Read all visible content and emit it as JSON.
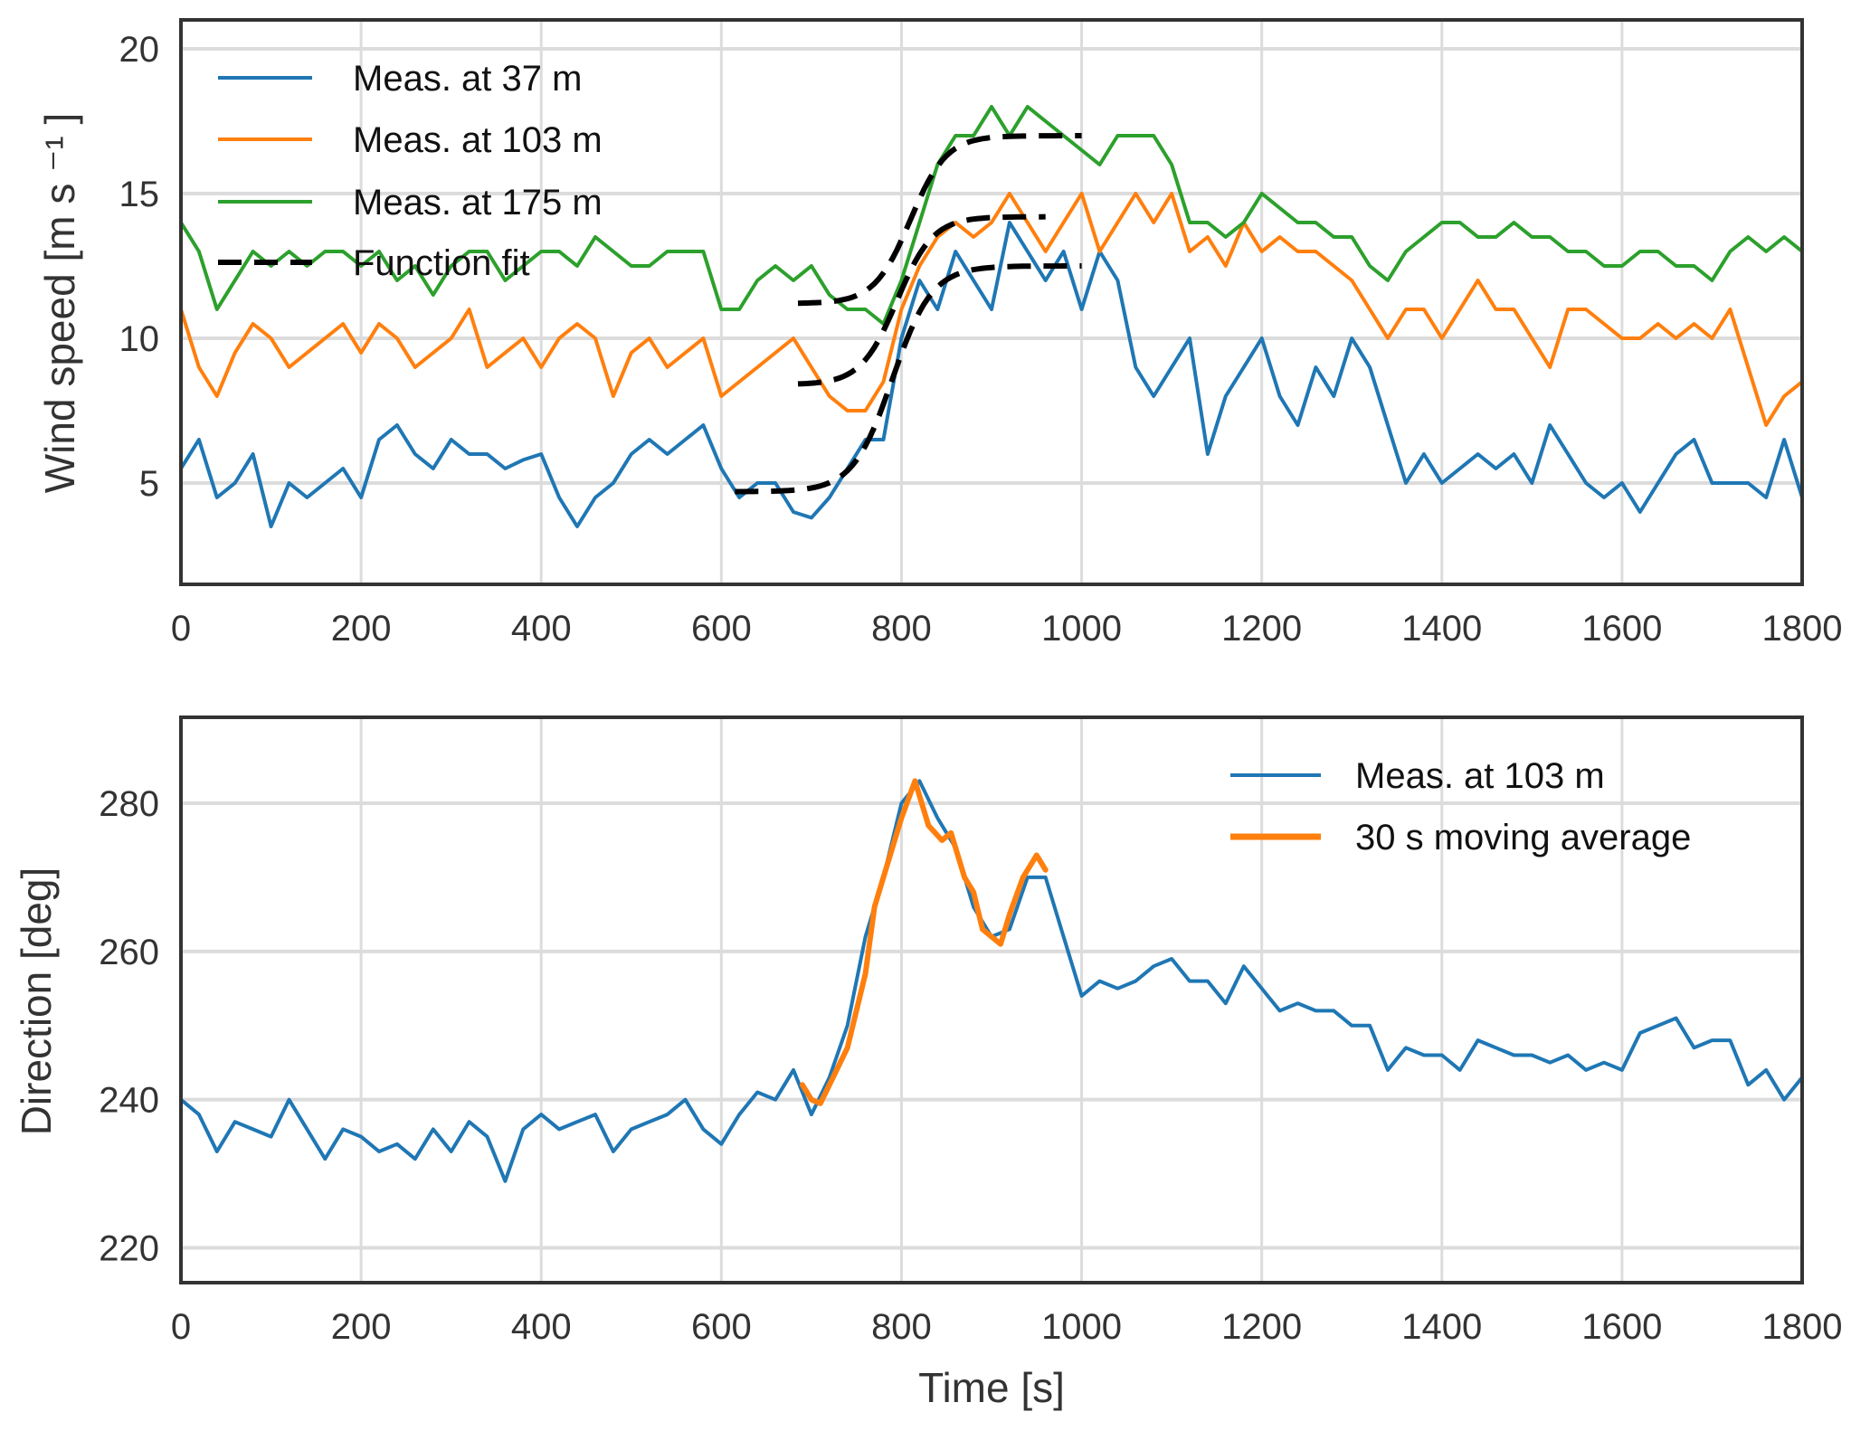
{
  "chart_data": [
    {
      "type": "line",
      "title": "",
      "xlabel": "",
      "ylabel": "Wind speed [m s ⁻¹ ]",
      "xlim": [
        0,
        1800
      ],
      "ylim": [
        1.5,
        21
      ],
      "xticks": [
        "0",
        "200",
        "400",
        "600",
        "800",
        "1000",
        "1200",
        "1400",
        "1600",
        "1800"
      ],
      "yticks": [
        "5",
        "10",
        "15",
        "20"
      ],
      "grid": true,
      "legend_position": "top-left",
      "x": [
        0,
        20,
        40,
        60,
        80,
        100,
        120,
        140,
        160,
        180,
        200,
        220,
        240,
        260,
        280,
        300,
        320,
        340,
        360,
        380,
        400,
        420,
        440,
        460,
        480,
        500,
        520,
        540,
        560,
        580,
        600,
        620,
        640,
        660,
        680,
        700,
        720,
        740,
        760,
        780,
        800,
        820,
        840,
        860,
        880,
        900,
        920,
        940,
        960,
        980,
        1000,
        1020,
        1040,
        1060,
        1080,
        1100,
        1120,
        1140,
        1160,
        1180,
        1200,
        1220,
        1240,
        1260,
        1280,
        1300,
        1320,
        1340,
        1360,
        1380,
        1400,
        1420,
        1440,
        1460,
        1480,
        1500,
        1520,
        1540,
        1560,
        1580,
        1600,
        1620,
        1640,
        1660,
        1680,
        1700,
        1720,
        1740,
        1760,
        1780,
        1800
      ],
      "series": [
        {
          "name": "Meas. at 37 m",
          "color": "#1f77b4",
          "values": [
            5.5,
            6.5,
            4.5,
            5,
            6,
            3.5,
            5,
            4.5,
            5,
            5.5,
            4.5,
            6.5,
            7,
            6,
            5.5,
            6.5,
            6,
            6,
            5.5,
            5.8,
            6,
            4.5,
            3.5,
            4.5,
            5,
            6,
            6.5,
            6,
            6.5,
            7,
            5.5,
            4.5,
            5,
            5,
            4,
            3.8,
            4.5,
            5.5,
            6.5,
            6.5,
            10,
            12,
            11,
            13,
            12,
            11,
            14,
            13,
            12,
            13,
            11,
            13,
            12,
            9,
            8,
            9,
            10,
            6,
            8,
            9,
            10,
            8,
            7,
            9,
            8,
            10,
            9,
            7,
            5,
            6,
            5,
            5.5,
            6,
            5.5,
            6,
            5,
            7,
            6,
            5,
            4.5,
            5,
            4,
            5,
            6,
            6.5,
            5,
            5,
            5,
            4.5,
            6.5,
            4.5
          ]
        },
        {
          "name": "Meas. at 103 m",
          "color": "#ff7f0e",
          "values": [
            11,
            9,
            8,
            9.5,
            10.5,
            10,
            9,
            9.5,
            10,
            10.5,
            9.5,
            10.5,
            10,
            9,
            9.5,
            10,
            11,
            9,
            9.5,
            10,
            9,
            10,
            10.5,
            10,
            8,
            9.5,
            10,
            9,
            9.5,
            10,
            8,
            8.5,
            9,
            9.5,
            10,
            9,
            8,
            7.5,
            7.5,
            8.5,
            11,
            12.5,
            13.5,
            14,
            13.5,
            14,
            15,
            14,
            13,
            14,
            15,
            13,
            14,
            15,
            14,
            15,
            13,
            13.5,
            12.5,
            14,
            13,
            13.5,
            13,
            13,
            12.5,
            12,
            11,
            10,
            11,
            11,
            10,
            11,
            12,
            11,
            11,
            10,
            9,
            11,
            11,
            10.5,
            10,
            10,
            10.5,
            10,
            10.5,
            10,
            11,
            9,
            7,
            8,
            8.5
          ]
        },
        {
          "name": "Meas. at  175 m",
          "color": "#2ca02c",
          "values": [
            14,
            13,
            11,
            12,
            13,
            12.5,
            13,
            12.5,
            13,
            13,
            12.5,
            13,
            12,
            12.5,
            11.5,
            12.5,
            13,
            13,
            12,
            12.5,
            13,
            13,
            12.5,
            13.5,
            13,
            12.5,
            12.5,
            13,
            13,
            13,
            11,
            11,
            12,
            12.5,
            12,
            12.5,
            11.5,
            11,
            11,
            10.5,
            12,
            14,
            16,
            17,
            17,
            18,
            17,
            18,
            17.5,
            17,
            16.5,
            16,
            17,
            17,
            17,
            16,
            14,
            14,
            13.5,
            14,
            15,
            14.5,
            14,
            14,
            13.5,
            13.5,
            12.5,
            12,
            13,
            13.5,
            14,
            14,
            13.5,
            13.5,
            14,
            13.5,
            13.5,
            13,
            13,
            12.5,
            12.5,
            13,
            13,
            12.5,
            12.5,
            12,
            13,
            13.5,
            13,
            13.5,
            13
          ]
        }
      ],
      "function_fit": {
        "name": "Function fit",
        "color": "#000000",
        "curves": [
          {
            "t_start": 615,
            "t_end": 1000,
            "low": 4.7,
            "high": 12.5,
            "t0": 790,
            "tau": 22
          },
          {
            "t_start": 685,
            "t_end": 960,
            "low": 8.4,
            "high": 14.2,
            "t0": 795,
            "tau": 20
          },
          {
            "t_start": 685,
            "t_end": 1000,
            "low": 11.2,
            "high": 17.0,
            "t0": 810,
            "tau": 20
          }
        ]
      }
    },
    {
      "type": "line",
      "title": "",
      "xlabel": "Time [s]",
      "ylabel": "Direction [deg]",
      "xlim": [
        0,
        1800
      ],
      "ylim": [
        215.3,
        291.6
      ],
      "xticks": [
        "0",
        "200",
        "400",
        "600",
        "800",
        "1000",
        "1200",
        "1400",
        "1600",
        "1800"
      ],
      "yticks": [
        "220",
        "240",
        "260",
        "280"
      ],
      "grid": true,
      "legend_position": "top-right",
      "series": [
        {
          "name": "Meas. at 103 m",
          "color": "#1f77b4",
          "x": [
            0,
            20,
            40,
            60,
            80,
            100,
            120,
            140,
            160,
            180,
            200,
            220,
            240,
            260,
            280,
            300,
            320,
            340,
            360,
            380,
            400,
            420,
            440,
            460,
            480,
            500,
            520,
            540,
            560,
            580,
            600,
            620,
            640,
            660,
            680,
            700,
            720,
            740,
            760,
            780,
            800,
            820,
            840,
            860,
            880,
            900,
            920,
            940,
            960,
            980,
            1000,
            1020,
            1040,
            1060,
            1080,
            1100,
            1120,
            1140,
            1160,
            1180,
            1200,
            1220,
            1240,
            1260,
            1280,
            1300,
            1320,
            1340,
            1360,
            1380,
            1400,
            1420,
            1440,
            1460,
            1480,
            1500,
            1520,
            1540,
            1560,
            1580,
            1600,
            1620,
            1640,
            1660,
            1680,
            1700,
            1720,
            1740,
            1760,
            1780,
            1800
          ],
          "values": [
            240,
            238,
            233,
            237,
            236,
            235,
            240,
            236,
            232,
            236,
            235,
            233,
            234,
            232,
            236,
            233,
            237,
            235,
            229,
            236,
            238,
            236,
            237,
            238,
            233,
            236,
            237,
            238,
            240,
            236,
            234,
            238,
            241,
            240,
            244,
            238,
            243,
            250,
            262,
            270,
            280,
            283,
            278,
            274,
            266,
            262,
            263,
            270,
            270,
            262,
            254,
            256,
            255,
            256,
            258,
            259,
            256,
            256,
            253,
            258,
            255,
            252,
            253,
            252,
            252,
            250,
            250,
            244,
            247,
            246,
            246,
            244,
            248,
            247,
            246,
            246,
            245,
            246,
            244,
            245,
            244,
            249,
            250,
            251,
            247,
            248,
            248,
            242,
            244,
            240,
            243
          ]
        },
        {
          "name": "30 s moving average",
          "color": "#ff7f0e",
          "x": [
            690,
            700,
            710,
            720,
            740,
            760,
            770,
            780,
            800,
            815,
            830,
            845,
            855,
            870,
            880,
            890,
            900,
            910,
            920,
            935,
            950,
            960
          ],
          "values": [
            242,
            240,
            239.5,
            242,
            247,
            257,
            266,
            270,
            278,
            283,
            277,
            275,
            276,
            270,
            268,
            263,
            262,
            261,
            265,
            270,
            273,
            271
          ]
        }
      ]
    }
  ]
}
